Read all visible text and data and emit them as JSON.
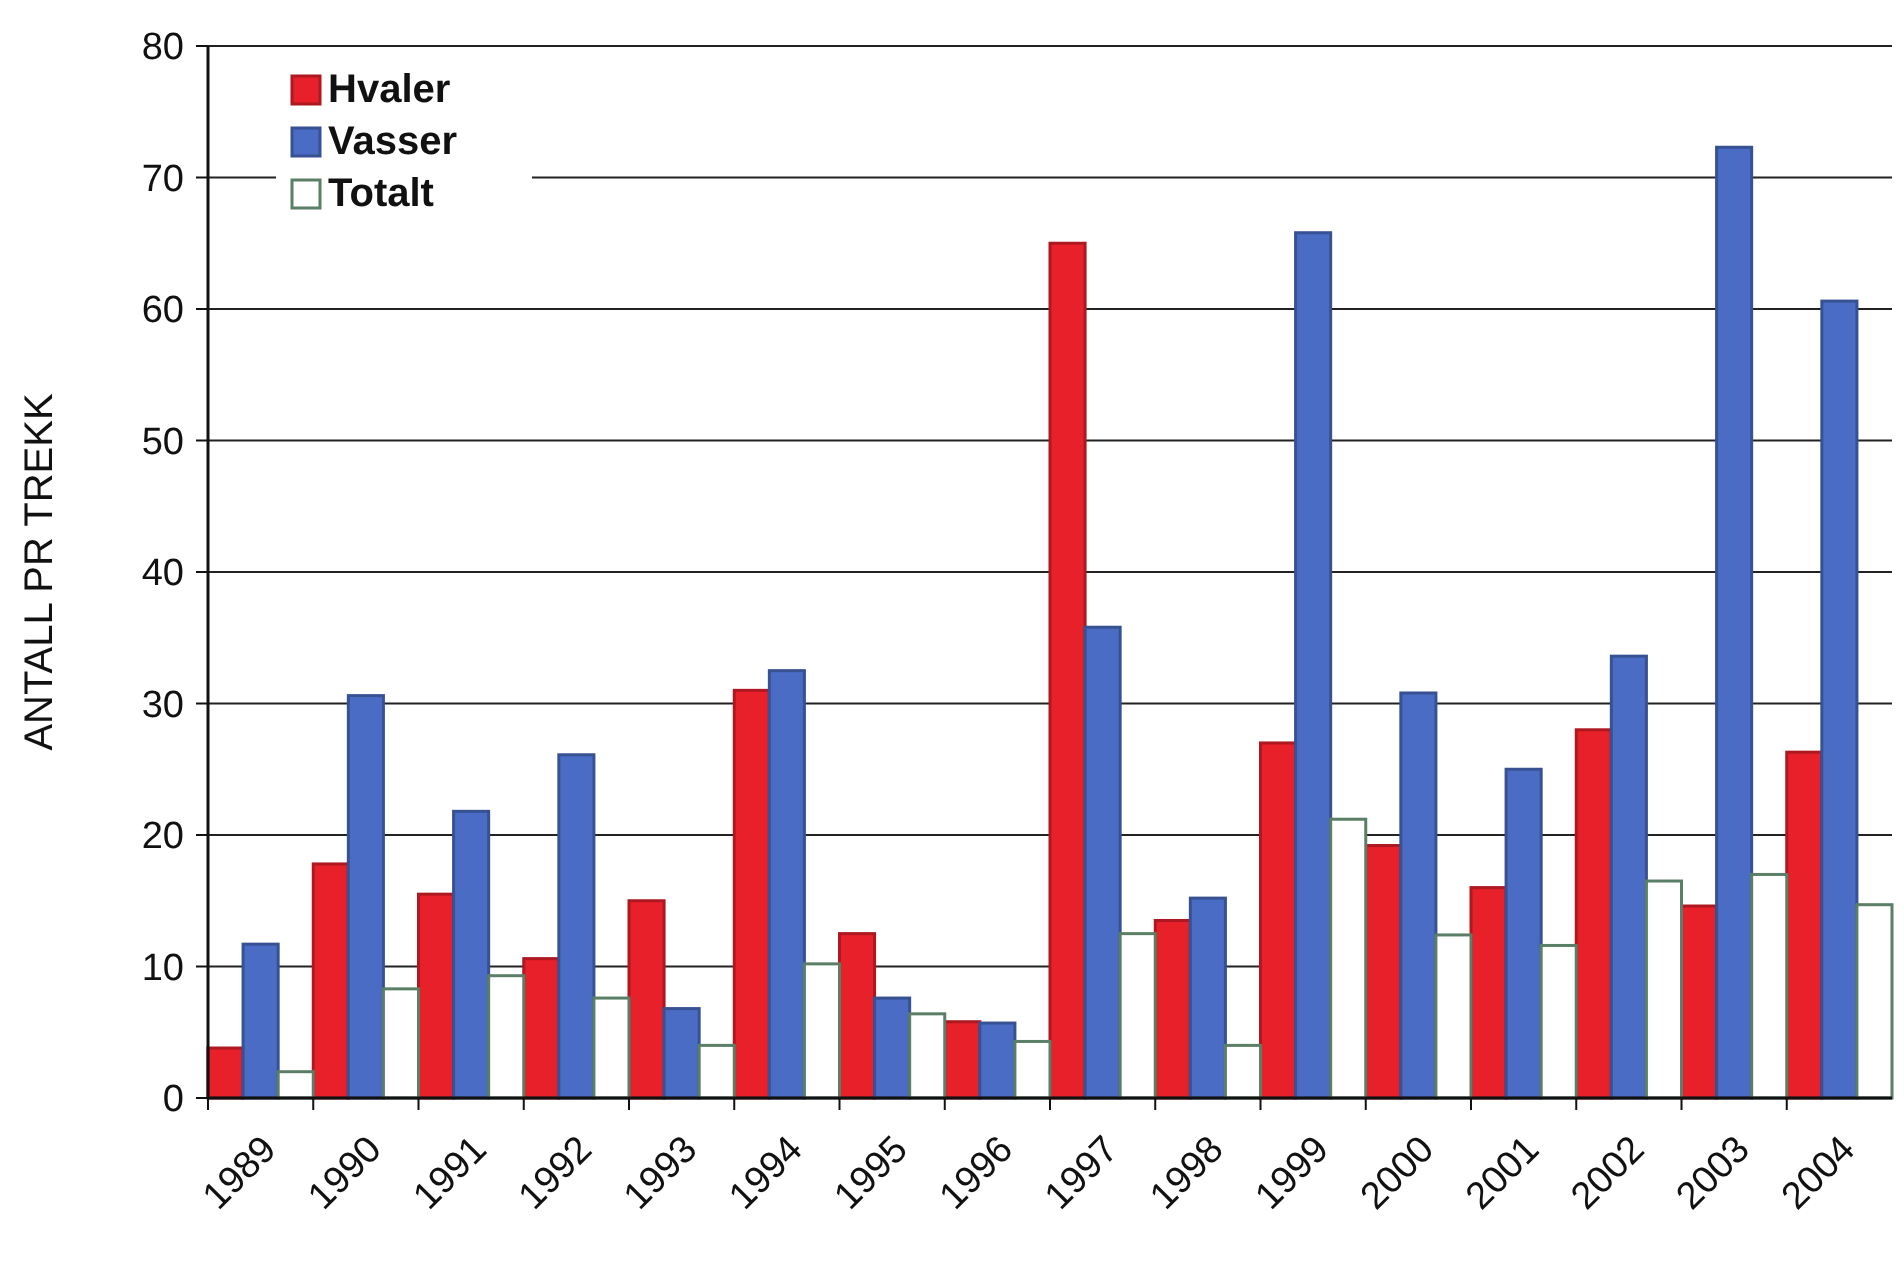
{
  "chart_data": {
    "type": "bar",
    "ylabel": "ANTALL PR TREKK",
    "categories": [
      "1989",
      "1990",
      "1991",
      "1992",
      "1993",
      "1994",
      "1995",
      "1996",
      "1997",
      "1998",
      "1999",
      "2000",
      "2001",
      "2002",
      "2003",
      "2004"
    ],
    "series": [
      {
        "name": "Hvaler",
        "color": "#e8202a",
        "values": [
          3.8,
          17.8,
          15.5,
          10.6,
          15,
          31,
          12.5,
          5.8,
          65,
          13.5,
          27,
          19.2,
          16,
          28,
          14.6,
          26.3
        ]
      },
      {
        "name": "Vasser",
        "color": "#4a6cc4",
        "values": [
          11.7,
          30.6,
          21.8,
          26.1,
          6.8,
          32.5,
          7.6,
          5.7,
          35.8,
          15.2,
          65.8,
          30.8,
          25,
          33.6,
          72.3,
          60.6
        ]
      },
      {
        "name": "Totalt",
        "color": "#ffffff",
        "values": [
          2,
          8.3,
          9.3,
          7.6,
          4,
          10.2,
          6.4,
          4.3,
          12.5,
          4,
          21.2,
          12.4,
          11.6,
          16.5,
          17,
          14.7
        ]
      }
    ],
    "ylim": [
      0,
      80
    ],
    "yticks": [
      0,
      10,
      20,
      30,
      40,
      50,
      60,
      70,
      80
    ],
    "grid": "y",
    "legend": "top left"
  }
}
